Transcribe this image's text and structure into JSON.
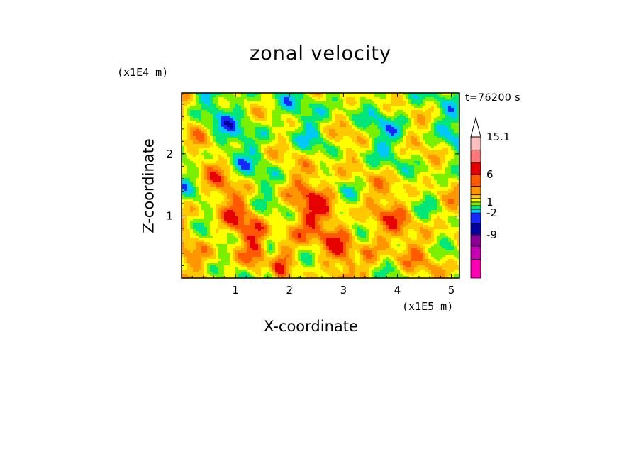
{
  "chart_data": {
    "type": "heatmap",
    "title": "zonal velocity",
    "xlabel": "X-coordinate",
    "ylabel": "Z-coordinate",
    "x_unit": "(x1E5 m)",
    "y_unit": "(x1E4 m)",
    "annotation": "t=76200 s",
    "xlim": [
      0,
      5.15
    ],
    "ylim": [
      0,
      2.98
    ],
    "x_ticks": [
      "1",
      "2",
      "3",
      "4",
      "5"
    ],
    "y_ticks": [
      "1",
      "2"
    ],
    "colorbar": {
      "labels": [
        "15.1",
        "6",
        "1",
        "-2",
        "-9"
      ],
      "colors": [
        "#ff00b4",
        "#c800b4",
        "#8a0096",
        "#0000a0",
        "#1428ff",
        "#00c8ff",
        "#00e678",
        "#78f000",
        "#ffff00",
        "#ffc800",
        "#ff9600",
        "#ff5a00",
        "#e60000",
        "#ff7878",
        "#ffbebe"
      ],
      "extend_top": true
    }
  }
}
